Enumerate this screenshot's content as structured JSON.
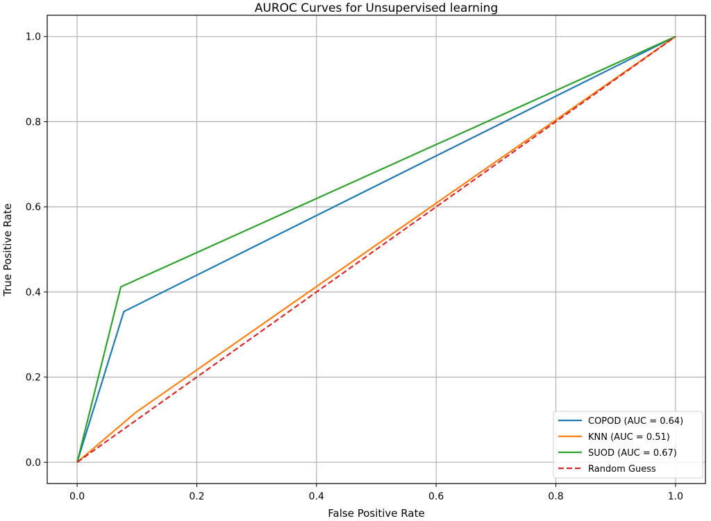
{
  "chart_data": {
    "type": "line",
    "title": "AUROC Curves for Unsupervised learning",
    "xlabel": "False Positive Rate",
    "ylabel": "True Positive Rate",
    "xlim": [
      -0.05,
      1.05
    ],
    "ylim": [
      -0.05,
      1.05
    ],
    "xticks": [
      "0.0",
      "0.2",
      "0.4",
      "0.6",
      "0.8",
      "1.0"
    ],
    "yticks": [
      "0.0",
      "0.2",
      "0.4",
      "0.6",
      "0.8",
      "1.0"
    ],
    "grid": true,
    "legend_position": "lower-right",
    "series": [
      {
        "name": "COPOD (AUC = 0.64)",
        "color": "#1f77b4",
        "dash": false,
        "x": [
          0,
          0.078,
          1
        ],
        "y": [
          0,
          0.354,
          1
        ]
      },
      {
        "name": "KNN (AUC = 0.51)",
        "color": "#ff7f0e",
        "dash": false,
        "x": [
          0,
          0.098,
          1
        ],
        "y": [
          0,
          0.117,
          1
        ]
      },
      {
        "name": "SUOD (AUC = 0.67)",
        "color": "#2ca02c",
        "dash": false,
        "x": [
          0,
          0.073,
          1
        ],
        "y": [
          0,
          0.412,
          1
        ]
      },
      {
        "name": "Random Guess",
        "color": "#d62728",
        "dash": true,
        "x": [
          0,
          1
        ],
        "y": [
          0,
          1
        ]
      }
    ]
  }
}
